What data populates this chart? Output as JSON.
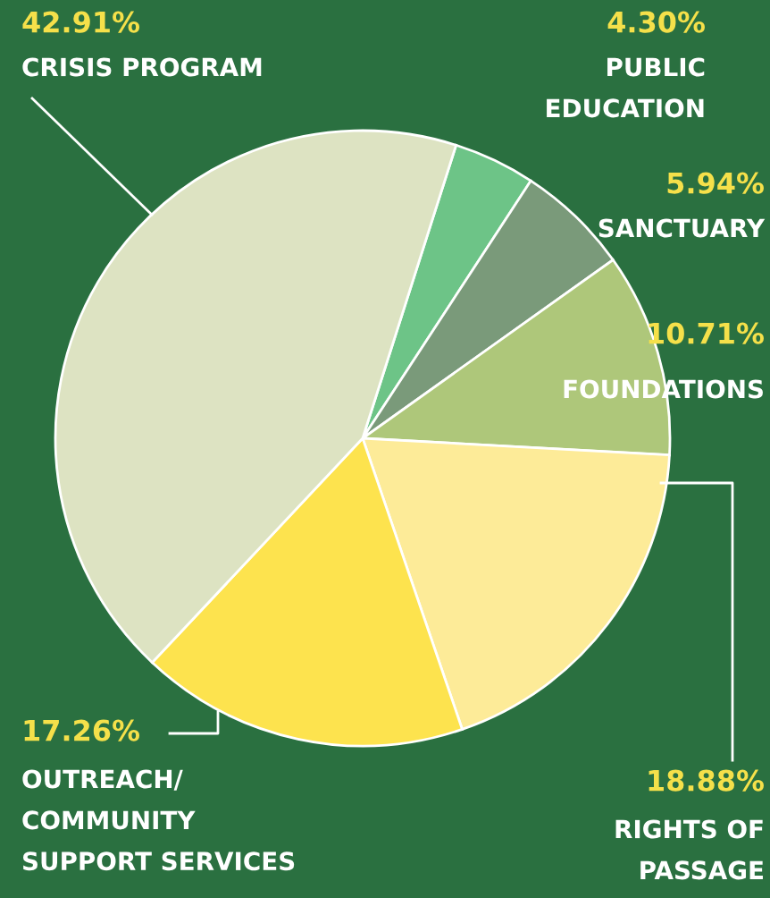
{
  "chart_data": {
    "type": "pie",
    "categories": [
      "PUBLIC\nEDUCATION",
      "SANCTUARY",
      "FOUNDATIONS",
      "RIGHTS OF\nPASSAGE",
      "OUTREACH/\nCOMMUNITY\nSUPPORT SERVICES",
      "CRISIS PROGRAM"
    ],
    "values": [
      4.3,
      5.94,
      10.71,
      18.88,
      17.26,
      42.91
    ],
    "value_labels": [
      "4.30%",
      "5.94%",
      "10.71%",
      "18.88%",
      "17.26%",
      "42.91%"
    ],
    "colors": [
      "#6dc487",
      "#7a9a7a",
      "#aec77a",
      "#fdeb98",
      "#fde34e",
      "#dde3c2"
    ],
    "legend": false
  }
}
